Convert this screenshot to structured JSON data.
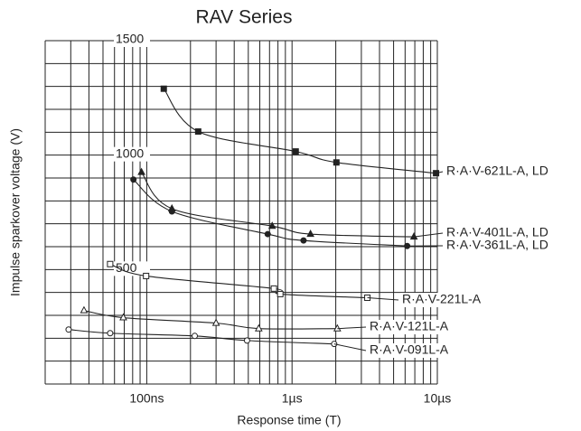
{
  "chart_data": {
    "type": "scatter",
    "title": "RAV Series",
    "xlabel": "Response time (T)",
    "ylabel": "Impulse sparkover voltage (V)",
    "xscale": "log",
    "xlim": [
      20,
      10000
    ],
    "xticks": [
      {
        "value": 100,
        "label": "100ns"
      },
      {
        "value": 1000,
        "label": "1µs"
      },
      {
        "value": 10000,
        "label": "10µs"
      }
    ],
    "xminor": [
      30,
      40,
      50,
      60,
      70,
      80,
      90,
      200,
      300,
      400,
      500,
      600,
      700,
      800,
      900,
      2000,
      3000,
      4000,
      5000,
      6000,
      7000,
      8000,
      9000
    ],
    "ylim": [
      0,
      1500
    ],
    "yticks": [
      500,
      1000,
      1500
    ],
    "ygrid": [
      0,
      100,
      200,
      300,
      400,
      500,
      600,
      700,
      800,
      900,
      1000,
      1100,
      1200,
      1300,
      1400,
      1500
    ],
    "grid": true,
    "color": "#222222",
    "series": [
      {
        "name": "R·A·V-621L-A, LD",
        "marker": "square",
        "filled": true,
        "x": [
          131,
          226,
          1060,
          2020,
          9800
        ],
        "values": [
          1290,
          1103,
          1016,
          968,
          921
        ]
      },
      {
        "name": "R·A·V-401L-A, LD",
        "marker": "triangle",
        "filled": true,
        "x": [
          92,
          149,
          730,
          1340,
          6900
        ],
        "values": [
          925,
          766,
          690,
          655,
          643
        ]
      },
      {
        "name": "R·A·V-361L-A, LD",
        "marker": "circle",
        "filled": true,
        "x": [
          81,
          149,
          680,
          1200,
          6200
        ],
        "values": [
          893,
          754,
          655,
          627,
          603
        ]
      },
      {
        "name": "R·A·V-221L-A",
        "marker": "square",
        "filled": false,
        "x": [
          56,
          99,
          750,
          830,
          3300
        ],
        "values": [
          524,
          472,
          417,
          393,
          377
        ]
      },
      {
        "name": "R·A·V-121L-A",
        "marker": "triangle",
        "filled": false,
        "x": [
          37,
          69,
          300,
          590,
          2050
        ],
        "values": [
          321,
          290,
          266,
          242,
          242
        ]
      },
      {
        "name": "R·A·V-091L-A",
        "marker": "circle",
        "filled": false,
        "x": [
          29,
          56,
          214,
          490,
          1950
        ],
        "values": [
          238,
          222,
          210,
          190,
          175
        ]
      }
    ]
  }
}
